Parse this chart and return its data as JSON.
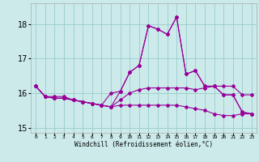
{
  "xlabel": "Windchill (Refroidissement éolien,°C)",
  "bg_color": "#cceaea",
  "line_color": "#990099",
  "grid_color": "#99cccc",
  "x": [
    0,
    1,
    2,
    3,
    4,
    5,
    6,
    7,
    8,
    9,
    10,
    11,
    12,
    13,
    14,
    15,
    16,
    17,
    18,
    19,
    20,
    21,
    22,
    23
  ],
  "line1": [
    16.2,
    15.9,
    15.9,
    15.9,
    15.8,
    15.75,
    15.7,
    15.65,
    15.6,
    15.8,
    16.0,
    16.1,
    16.15,
    16.15,
    16.15,
    16.15,
    16.15,
    16.1,
    16.15,
    16.2,
    16.2,
    16.2,
    15.95,
    15.95
  ],
  "line2": [
    16.2,
    15.9,
    15.85,
    15.85,
    15.8,
    15.75,
    15.7,
    15.65,
    15.6,
    16.05,
    16.6,
    16.8,
    17.95,
    17.85,
    17.7,
    18.2,
    16.55,
    16.65,
    16.2,
    16.2,
    15.95,
    15.95,
    15.45,
    15.4
  ],
  "line3": [
    16.2,
    15.9,
    15.85,
    15.85,
    15.8,
    15.75,
    15.7,
    15.65,
    15.6,
    15.65,
    15.65,
    15.65,
    15.65,
    15.65,
    15.65,
    15.65,
    15.6,
    15.55,
    15.5,
    15.4,
    15.35,
    15.35,
    15.4,
    15.4
  ],
  "line4": [
    16.2,
    15.9,
    15.85,
    15.85,
    15.8,
    15.75,
    15.7,
    15.65,
    16.0,
    16.05,
    16.6,
    16.8,
    17.95,
    17.85,
    17.7,
    18.2,
    16.55,
    16.65,
    16.2,
    16.2,
    15.95,
    15.95,
    15.45,
    15.4
  ],
  "ylim": [
    14.85,
    18.6
  ],
  "yticks": [
    15,
    16,
    17,
    18
  ],
  "xtick_labels": [
    "0",
    "1",
    "2",
    "3",
    "4",
    "5",
    "6",
    "7",
    "8",
    "9",
    "10",
    "11",
    "12",
    "13",
    "14",
    "15",
    "16",
    "17",
    "18",
    "19",
    "20",
    "21",
    "22",
    "23"
  ]
}
